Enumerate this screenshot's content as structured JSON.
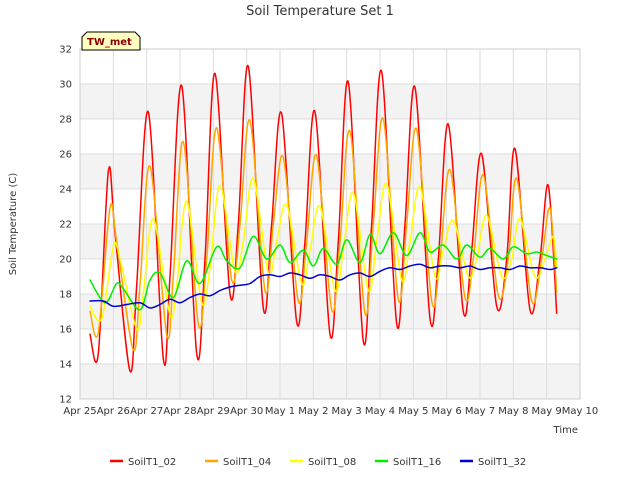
{
  "chart_data": {
    "type": "line",
    "title": "Soil Temperature Set 1",
    "xlabel": "Time",
    "ylabel": "Soil Temperature (C)",
    "badge": "TW_met",
    "ylim": [
      12,
      32
    ],
    "yticks": [
      12,
      14,
      16,
      18,
      20,
      22,
      24,
      26,
      28,
      30,
      32
    ],
    "xlim": [
      0,
      15
    ],
    "xticks": [
      0,
      1,
      2,
      3,
      4,
      5,
      6,
      7,
      8,
      9,
      10,
      11,
      12,
      13,
      14,
      15
    ],
    "xtick_labels": [
      "Apr 25",
      "Apr 26",
      "Apr 27",
      "Apr 28",
      "Apr 29",
      "Apr 30",
      "May 1",
      "May 2",
      "May 3",
      "May 4",
      "May 5",
      "May 6",
      "May 7",
      "May 8",
      "May 9",
      "May 10"
    ],
    "grid": true,
    "legend_position": "bottom",
    "series": [
      {
        "name": "SoilT1_02",
        "color": "#ff0000",
        "x": [
          0.3,
          0.55,
          0.85,
          1.05,
          1.5,
          1.7,
          2.05,
          2.5,
          2.7,
          3.05,
          3.5,
          3.75,
          4.05,
          4.5,
          4.75,
          5.05,
          5.5,
          5.75,
          6.05,
          6.5,
          6.75,
          7.05,
          7.5,
          7.75,
          8.05,
          8.5,
          8.75,
          9.05,
          9.5,
          9.75,
          10.05,
          10.5,
          10.75,
          11.05,
          11.5,
          11.75,
          12.05,
          12.5,
          12.8,
          13.05,
          13.5,
          13.8,
          14.05,
          14.3
        ],
        "y": [
          15.7,
          14.6,
          25.0,
          21.5,
          13.6,
          18.5,
          28.4,
          14.3,
          19.0,
          29.9,
          14.6,
          20.0,
          30.6,
          18.0,
          22.0,
          31.0,
          17.2,
          22.0,
          28.3,
          16.4,
          21.0,
          28.4,
          15.7,
          21.0,
          30.1,
          15.3,
          22.0,
          30.7,
          16.3,
          22.0,
          29.8,
          16.6,
          20.0,
          27.7,
          17.0,
          20.5,
          26.0,
          17.3,
          20.0,
          26.3,
          17.1,
          20.0,
          24.2,
          16.9
        ]
      },
      {
        "name": "SoilT1_04",
        "color": "#ffa500",
        "x": [
          0.3,
          0.55,
          0.9,
          1.1,
          1.6,
          1.8,
          2.1,
          2.6,
          2.8,
          3.1,
          3.55,
          3.8,
          4.1,
          4.55,
          4.8,
          5.1,
          5.55,
          5.8,
          6.1,
          6.55,
          6.8,
          7.1,
          7.55,
          7.8,
          8.1,
          8.55,
          8.8,
          9.1,
          9.55,
          9.8,
          10.1,
          10.55,
          10.8,
          11.1,
          11.55,
          11.8,
          12.1,
          12.55,
          12.85,
          13.1,
          13.55,
          13.85,
          14.1,
          14.3
        ],
        "y": [
          17.0,
          15.8,
          22.9,
          21.0,
          14.8,
          18.5,
          25.3,
          15.7,
          19.0,
          26.7,
          16.3,
          20.0,
          27.5,
          18.8,
          22.0,
          27.9,
          18.2,
          22.0,
          25.8,
          17.6,
          21.0,
          25.9,
          17.1,
          21.0,
          27.3,
          16.9,
          22.0,
          28.0,
          17.7,
          22.0,
          27.4,
          17.6,
          20.0,
          25.1,
          17.8,
          20.0,
          24.8,
          17.9,
          20.0,
          24.6,
          17.6,
          20.0,
          22.9,
          18.1
        ]
      },
      {
        "name": "SoilT1_08",
        "color": "#ffff00",
        "x": [
          0.3,
          0.65,
          1.0,
          1.2,
          1.7,
          1.9,
          2.2,
          2.7,
          2.9,
          3.2,
          3.65,
          3.9,
          4.2,
          4.65,
          4.9,
          5.2,
          5.65,
          5.9,
          6.2,
          6.65,
          6.9,
          7.2,
          7.65,
          7.9,
          8.2,
          8.65,
          8.9,
          9.2,
          9.65,
          9.9,
          10.2,
          10.65,
          10.9,
          11.2,
          11.65,
          11.9,
          12.2,
          12.65,
          12.95,
          13.2,
          13.65,
          13.95,
          14.2,
          14.3
        ],
        "y": [
          17.3,
          16.6,
          20.7,
          20.0,
          16.0,
          18.0,
          22.3,
          16.8,
          18.5,
          23.3,
          17.5,
          19.5,
          24.2,
          19.3,
          21.0,
          24.6,
          19.2,
          21.0,
          23.1,
          18.6,
          20.5,
          23.0,
          18.2,
          20.5,
          23.8,
          18.2,
          21.0,
          24.3,
          18.8,
          21.0,
          24.1,
          19.0,
          20.5,
          22.2,
          19.0,
          20.0,
          22.5,
          19.0,
          20.0,
          22.3,
          19.0,
          20.0,
          21.3,
          19.5
        ]
      },
      {
        "name": "SoilT1_16",
        "color": "#00ee00",
        "x": [
          0.3,
          0.75,
          1.1,
          1.3,
          1.8,
          2.1,
          2.4,
          2.8,
          3.2,
          3.6,
          4.1,
          4.4,
          4.8,
          5.2,
          5.6,
          6.0,
          6.3,
          6.7,
          7.0,
          7.3,
          7.7,
          8.0,
          8.4,
          8.7,
          9.0,
          9.4,
          9.8,
          10.2,
          10.5,
          10.9,
          11.3,
          11.6,
          12.0,
          12.3,
          12.7,
          13.0,
          13.4,
          13.7,
          14.0,
          14.3
        ],
        "y": [
          18.8,
          17.5,
          18.6,
          18.3,
          17.1,
          18.8,
          19.2,
          17.8,
          19.9,
          18.6,
          20.7,
          19.9,
          19.5,
          21.3,
          20.0,
          20.8,
          19.8,
          20.5,
          19.6,
          20.6,
          19.7,
          21.1,
          19.8,
          21.4,
          20.3,
          21.5,
          20.2,
          21.5,
          20.4,
          20.8,
          20.0,
          20.8,
          20.1,
          20.6,
          20.0,
          20.7,
          20.3,
          20.4,
          20.2,
          20.0
        ]
      },
      {
        "name": "SoilT1_32",
        "color": "#0000cc",
        "x": [
          0.3,
          0.7,
          1.0,
          1.4,
          1.8,
          2.1,
          2.4,
          2.7,
          3.0,
          3.3,
          3.6,
          3.9,
          4.2,
          4.5,
          4.8,
          5.1,
          5.4,
          5.7,
          6.0,
          6.3,
          6.6,
          6.9,
          7.2,
          7.5,
          7.8,
          8.1,
          8.4,
          8.7,
          9.0,
          9.3,
          9.6,
          9.9,
          10.2,
          10.5,
          10.8,
          11.1,
          11.4,
          11.7,
          12.0,
          12.3,
          12.6,
          12.9,
          13.2,
          13.5,
          13.8,
          14.1,
          14.3
        ],
        "y": [
          17.6,
          17.6,
          17.3,
          17.4,
          17.5,
          17.2,
          17.4,
          17.7,
          17.5,
          17.8,
          18.0,
          17.9,
          18.2,
          18.4,
          18.5,
          18.6,
          19.0,
          19.1,
          19.0,
          19.2,
          19.1,
          18.9,
          19.1,
          19.0,
          18.8,
          19.1,
          19.2,
          19.0,
          19.3,
          19.5,
          19.4,
          19.6,
          19.7,
          19.5,
          19.6,
          19.6,
          19.5,
          19.6,
          19.4,
          19.5,
          19.5,
          19.4,
          19.6,
          19.5,
          19.5,
          19.4,
          19.5
        ]
      }
    ]
  }
}
